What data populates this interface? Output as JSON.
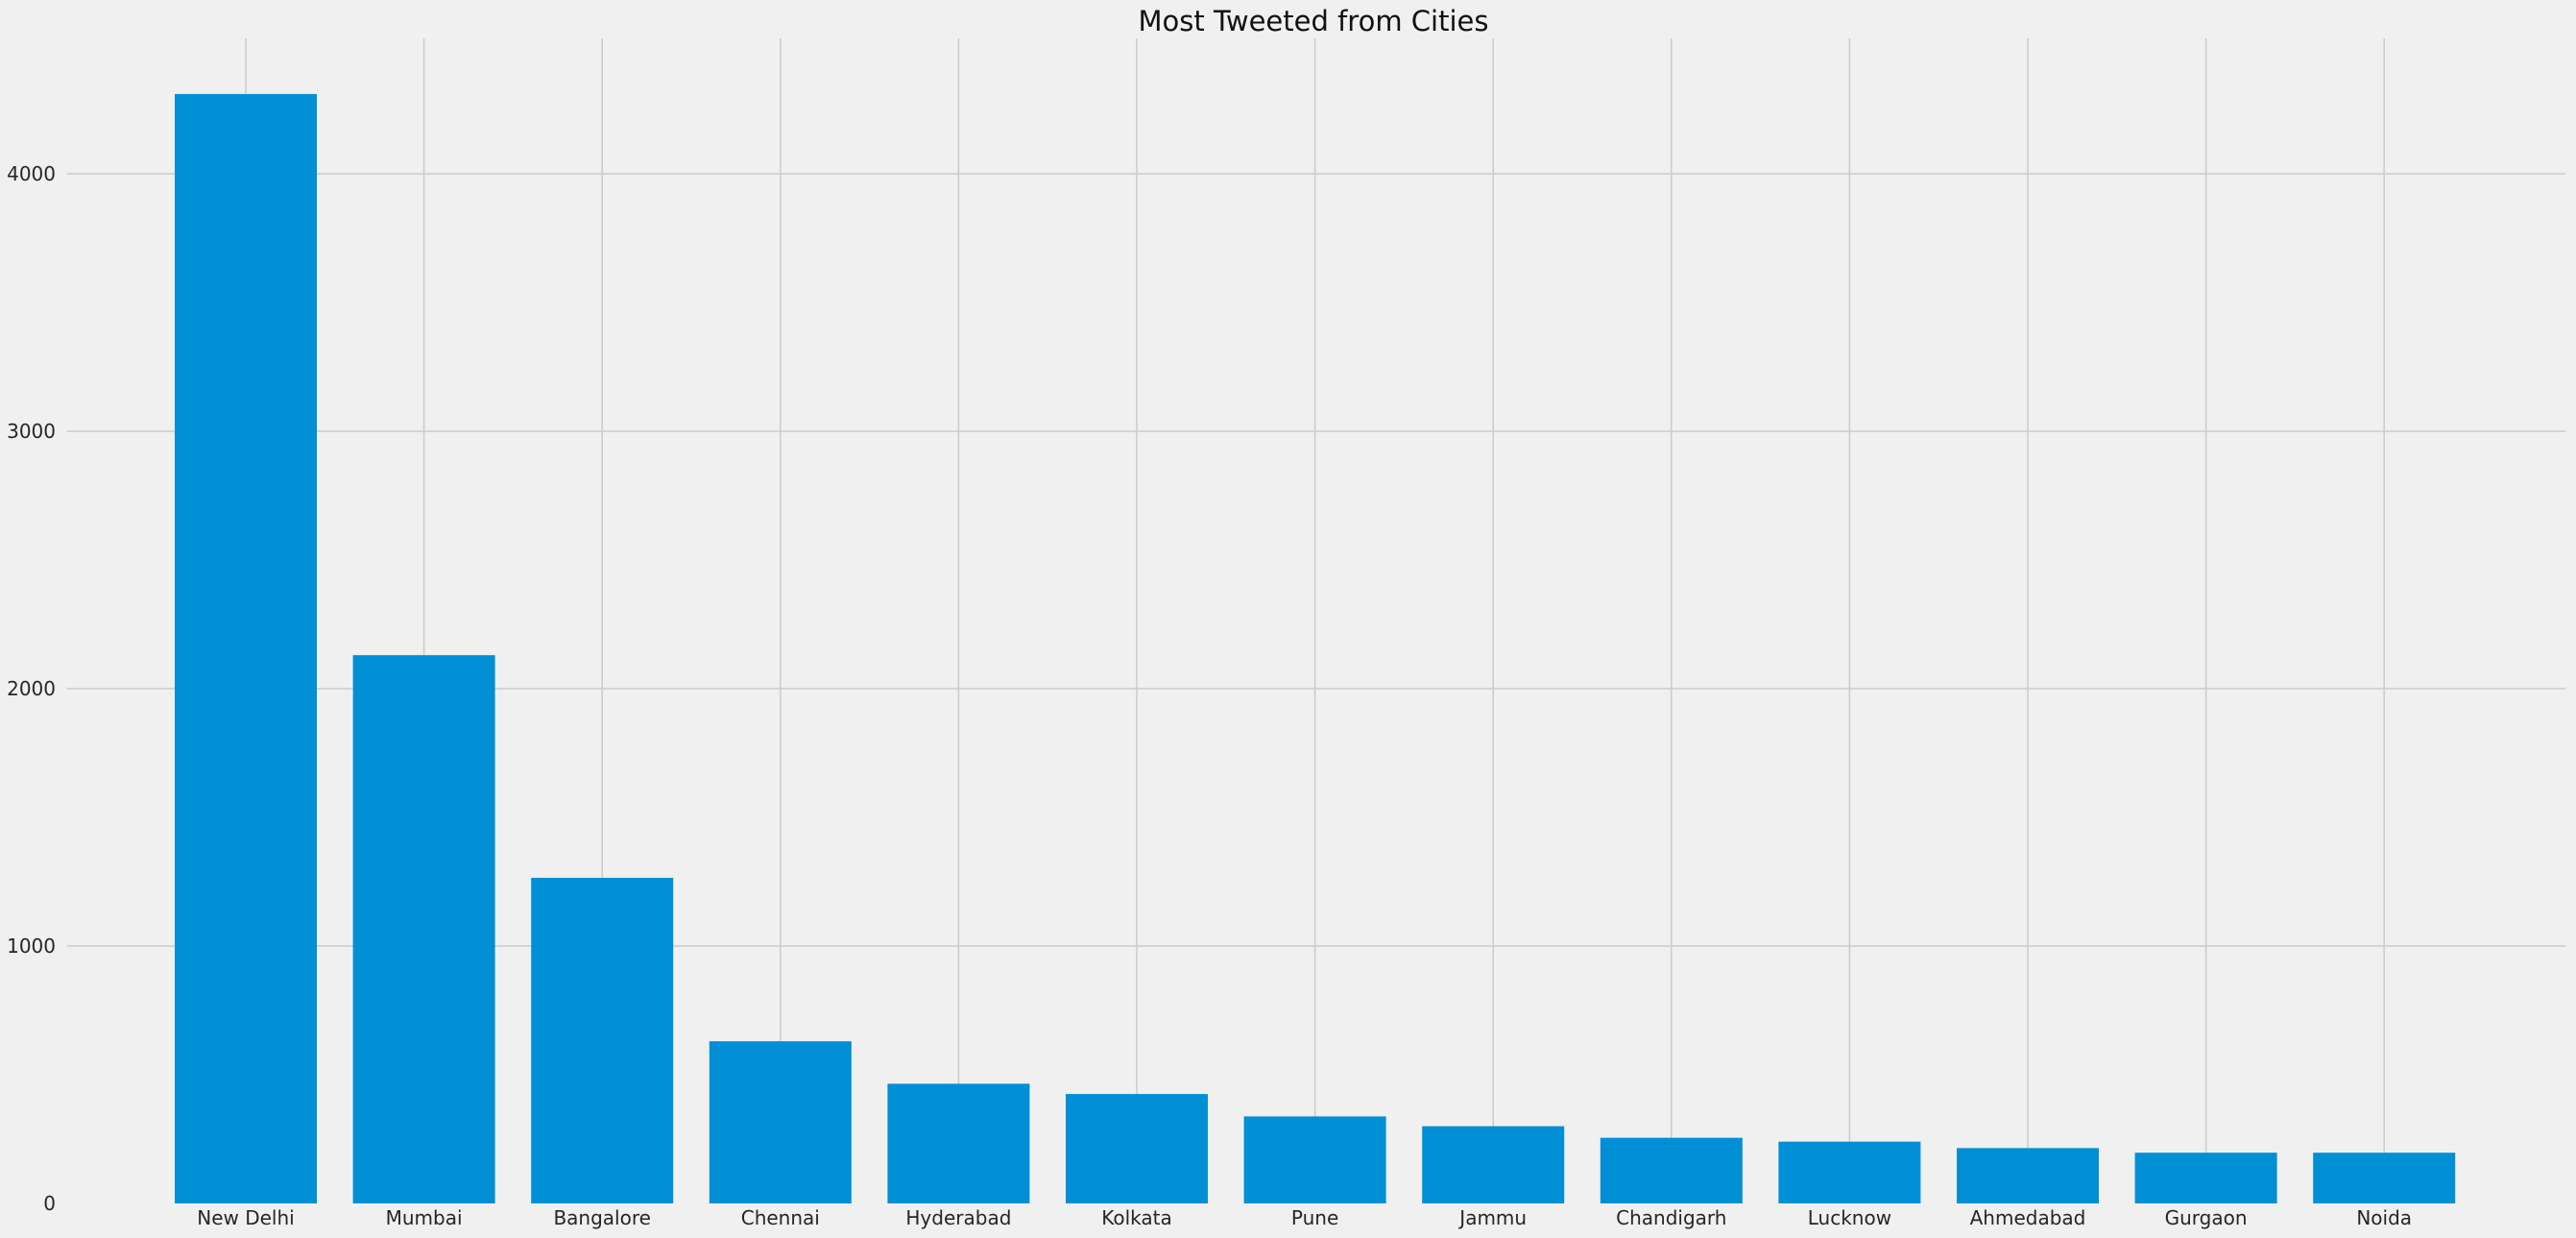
{
  "chart_data": {
    "type": "bar",
    "title": "Most Tweeted from Cities",
    "xlabel": "",
    "ylabel": "",
    "categories": [
      "New Delhi",
      "Mumbai",
      "Bangalore",
      "Chennai",
      "Hyderabad",
      "Kolkata",
      "Pune",
      "Jammu",
      "Chandigarh",
      "Lucknow",
      "Ahmedabad",
      "Gurgaon",
      "Noida"
    ],
    "values": [
      4310,
      2130,
      1265,
      630,
      465,
      425,
      338,
      300,
      255,
      240,
      215,
      197,
      197
    ],
    "yticks": [
      0,
      1000,
      2000,
      3000,
      4000
    ],
    "ylim": [
      0,
      4530
    ],
    "grid": true,
    "legend": "none",
    "colors": {
      "bar": "#008fd5",
      "background": "#f0f0f0",
      "grid": "#cbcbcb",
      "text": "#262626"
    }
  }
}
